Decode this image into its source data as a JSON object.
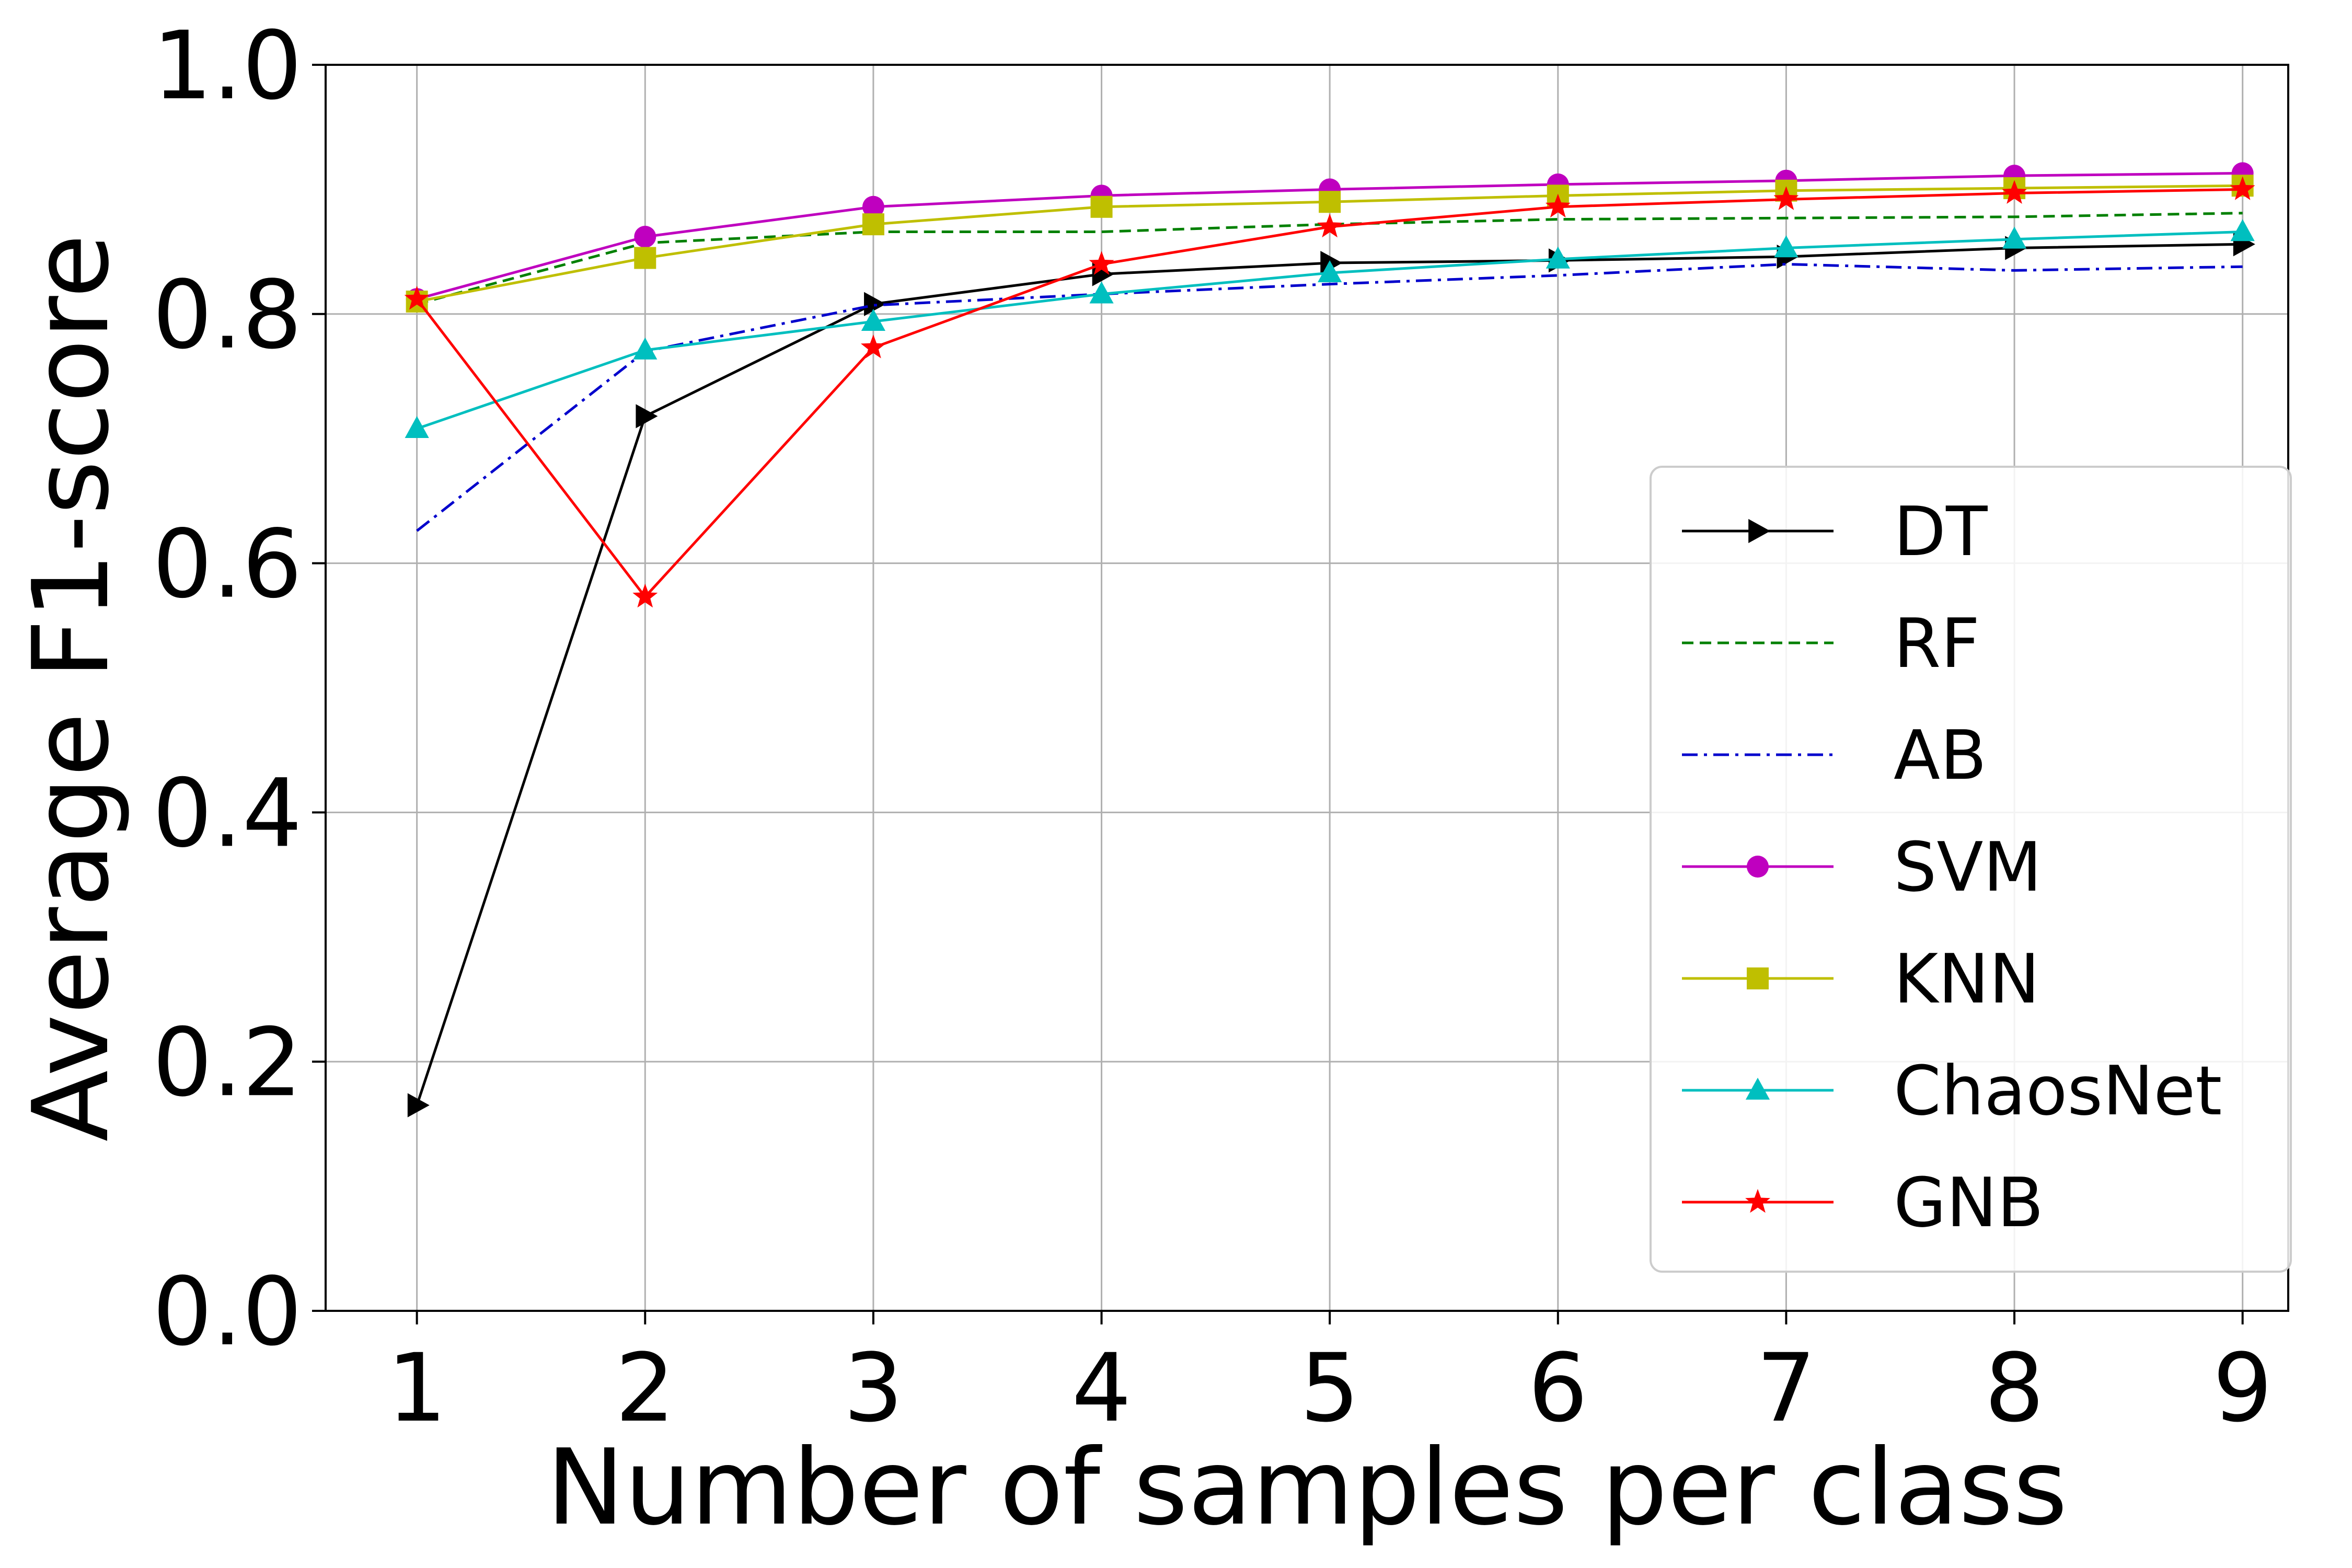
{
  "chart_data": {
    "type": "line",
    "title": "",
    "xlabel": "Number of samples per class",
    "ylabel": "Average F1-score",
    "xlim": [
      0.6,
      9.2
    ],
    "ylim": [
      0.0,
      1.0
    ],
    "x": [
      1,
      2,
      3,
      4,
      5,
      6,
      7,
      8,
      9
    ],
    "xticks": [
      "1",
      "2",
      "3",
      "4",
      "5",
      "6",
      "7",
      "8",
      "9"
    ],
    "yticks": [
      "0.0",
      "0.2",
      "0.4",
      "0.6",
      "0.8",
      "1.0"
    ],
    "grid": true,
    "legend_position": "center-right",
    "series": [
      {
        "name": "DT",
        "color": "#000000",
        "dash": "solid",
        "marker": "triangle-right",
        "values": [
          0.165,
          0.718,
          0.808,
          0.832,
          0.841,
          0.843,
          0.846,
          0.853,
          0.856
        ]
      },
      {
        "name": "RF",
        "color": "#008000",
        "dash": "dashed",
        "marker": "none",
        "values": [
          0.808,
          0.857,
          0.866,
          0.866,
          0.872,
          0.876,
          0.877,
          0.878,
          0.881
        ]
      },
      {
        "name": "AB",
        "color": "#0000cc",
        "dash": "dashdot",
        "marker": "none",
        "values": [
          0.626,
          0.77,
          0.807,
          0.816,
          0.824,
          0.831,
          0.84,
          0.835,
          0.838
        ]
      },
      {
        "name": "SVM",
        "color": "#bf00bf",
        "dash": "solid",
        "marker": "circle",
        "values": [
          0.812,
          0.862,
          0.886,
          0.895,
          0.9,
          0.904,
          0.907,
          0.911,
          0.913
        ]
      },
      {
        "name": "KNN",
        "color": "#bfbf00",
        "dash": "solid",
        "marker": "square",
        "values": [
          0.81,
          0.845,
          0.872,
          0.886,
          0.89,
          0.895,
          0.899,
          0.901,
          0.903
        ]
      },
      {
        "name": "ChaosNet",
        "color": "#00bfbf",
        "dash": "solid",
        "marker": "triangle-up",
        "values": [
          0.708,
          0.771,
          0.794,
          0.816,
          0.833,
          0.844,
          0.853,
          0.86,
          0.866
        ]
      },
      {
        "name": "GNB",
        "color": "#ff0000",
        "dash": "solid",
        "marker": "star",
        "values": [
          0.812,
          0.573,
          0.773,
          0.84,
          0.87,
          0.886,
          0.892,
          0.897,
          0.9
        ]
      }
    ]
  }
}
